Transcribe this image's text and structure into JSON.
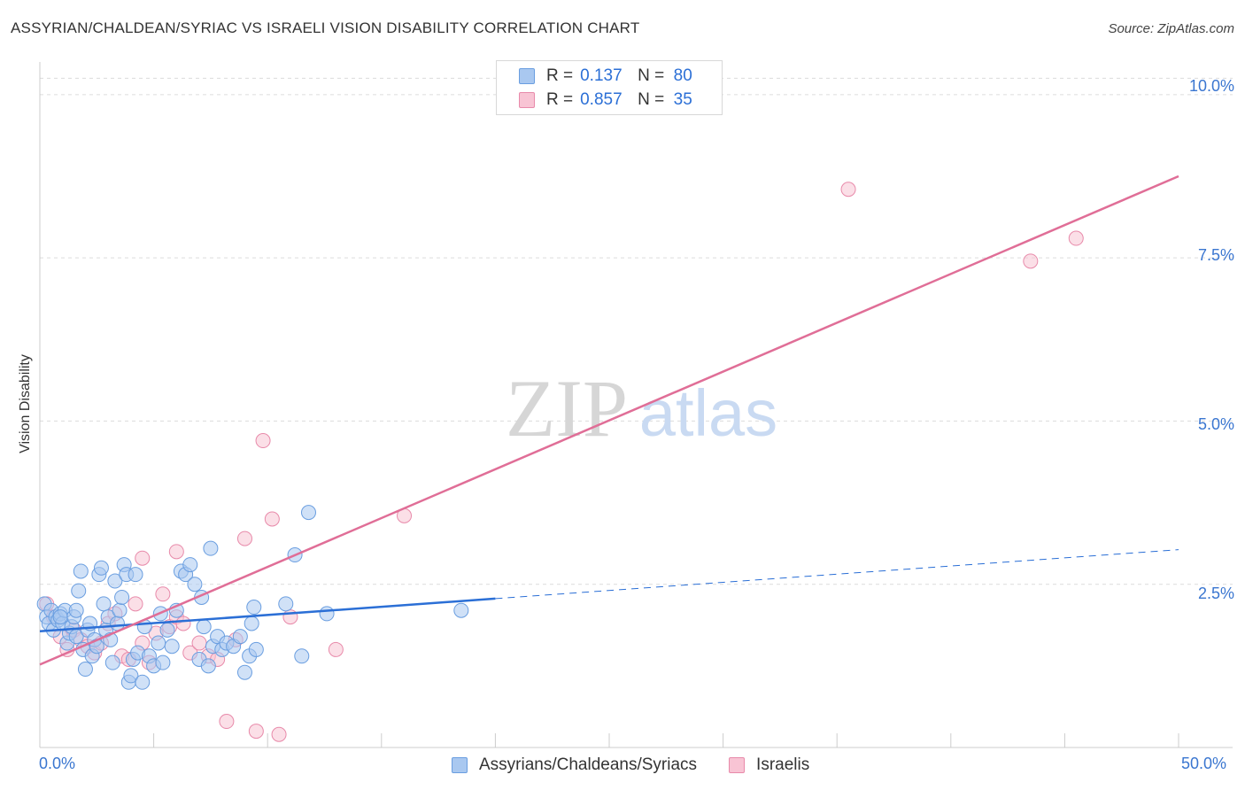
{
  "chart_data": {
    "type": "scatter",
    "title": "ASSYRIAN/CHALDEAN/SYRIAC VS ISRAELI VISION DISABILITY CORRELATION CHART",
    "source": "Source: ZipAtlas.com",
    "xlabel": "",
    "ylabel": "Vision Disability",
    "xlim": [
      0,
      50
    ],
    "ylim": [
      0,
      10.5
    ],
    "x_tick_labels": [
      "0.0%",
      "50.0%"
    ],
    "y_ticks": [
      2.5,
      5.0,
      7.5,
      10.0
    ],
    "y_tick_labels": [
      "2.5%",
      "5.0%",
      "7.5%",
      "10.0%"
    ],
    "grid": true,
    "watermark": {
      "left": "ZIP",
      "right": "atlas"
    },
    "legend_stats": [
      {
        "r_label": "R = ",
        "r_value": "0.137",
        "n_label": "N = ",
        "n_value": "80"
      },
      {
        "r_label": "R = ",
        "r_value": "0.857",
        "n_label": "N = ",
        "n_value": "35"
      }
    ],
    "series": [
      {
        "name": "Assyrians/Chaldeans/Syriacs",
        "color": "#a9c8f0",
        "stroke": "#6a9ee0",
        "line_color": "#2b6fd6",
        "trend": {
          "x0": 0,
          "y0": 1.78,
          "x1": 20,
          "y1": 2.28,
          "dash_to_x": 50,
          "dash_to_y": 3.03
        },
        "points": [
          [
            0.2,
            2.2
          ],
          [
            0.3,
            2.0
          ],
          [
            0.4,
            1.9
          ],
          [
            0.5,
            2.1
          ],
          [
            0.6,
            1.8
          ],
          [
            0.7,
            2.0
          ],
          [
            0.8,
            1.95
          ],
          [
            0.9,
            2.05
          ],
          [
            1.0,
            1.9
          ],
          [
            1.1,
            2.1
          ],
          [
            1.2,
            1.6
          ],
          [
            1.3,
            1.75
          ],
          [
            1.4,
            1.85
          ],
          [
            1.5,
            2.0
          ],
          [
            1.6,
            1.7
          ],
          [
            1.7,
            2.4
          ],
          [
            1.8,
            2.7
          ],
          [
            1.9,
            1.5
          ],
          [
            2.0,
            1.2
          ],
          [
            2.1,
            1.8
          ],
          [
            2.2,
            1.9
          ],
          [
            2.3,
            1.4
          ],
          [
            2.4,
            1.65
          ],
          [
            2.5,
            1.55
          ],
          [
            2.6,
            2.65
          ],
          [
            2.7,
            2.75
          ],
          [
            2.8,
            2.2
          ],
          [
            2.9,
            1.8
          ],
          [
            3.0,
            2.0
          ],
          [
            3.1,
            1.65
          ],
          [
            3.2,
            1.3
          ],
          [
            3.3,
            2.55
          ],
          [
            3.4,
            1.9
          ],
          [
            3.5,
            2.1
          ],
          [
            3.6,
            2.3
          ],
          [
            3.7,
            2.8
          ],
          [
            3.8,
            2.65
          ],
          [
            3.9,
            1.0
          ],
          [
            4.0,
            1.1
          ],
          [
            4.1,
            1.35
          ],
          [
            4.3,
            1.45
          ],
          [
            4.5,
            1.0
          ],
          [
            4.6,
            1.85
          ],
          [
            4.8,
            1.4
          ],
          [
            5.0,
            1.25
          ],
          [
            5.2,
            1.6
          ],
          [
            5.4,
            1.3
          ],
          [
            5.6,
            1.8
          ],
          [
            5.8,
            1.55
          ],
          [
            6.0,
            2.1
          ],
          [
            6.2,
            2.7
          ],
          [
            6.4,
            2.65
          ],
          [
            6.6,
            2.8
          ],
          [
            6.8,
            2.5
          ],
          [
            7.0,
            1.35
          ],
          [
            7.1,
            2.3
          ],
          [
            7.2,
            1.85
          ],
          [
            7.4,
            1.25
          ],
          [
            7.6,
            1.55
          ],
          [
            7.8,
            1.7
          ],
          [
            8.0,
            1.5
          ],
          [
            8.2,
            1.6
          ],
          [
            8.5,
            1.55
          ],
          [
            8.8,
            1.7
          ],
          [
            9.0,
            1.15
          ],
          [
            9.3,
            1.9
          ],
          [
            4.2,
            2.65
          ],
          [
            5.3,
            2.05
          ],
          [
            0.9,
            2.0
          ],
          [
            1.6,
            2.1
          ],
          [
            9.4,
            2.15
          ],
          [
            9.2,
            1.4
          ],
          [
            9.5,
            1.5
          ],
          [
            10.8,
            2.2
          ],
          [
            11.2,
            2.95
          ],
          [
            11.5,
            1.4
          ],
          [
            11.8,
            3.6
          ],
          [
            12.6,
            2.05
          ],
          [
            7.5,
            3.05
          ],
          [
            18.5,
            2.1
          ]
        ]
      },
      {
        "name": "Israelis",
        "color": "#f8c4d4",
        "stroke": "#e88aaa",
        "line_color": "#e06e97",
        "trend": {
          "x0": 0,
          "y0": 1.27,
          "x1": 50,
          "y1": 8.75
        },
        "points": [
          [
            0.3,
            2.2
          ],
          [
            0.6,
            2.0
          ],
          [
            0.9,
            1.7
          ],
          [
            1.2,
            1.5
          ],
          [
            1.5,
            1.8
          ],
          [
            1.8,
            1.65
          ],
          [
            2.1,
            1.55
          ],
          [
            2.4,
            1.45
          ],
          [
            2.7,
            1.6
          ],
          [
            3.0,
            1.9
          ],
          [
            3.3,
            2.05
          ],
          [
            3.6,
            1.4
          ],
          [
            3.9,
            1.35
          ],
          [
            4.2,
            2.2
          ],
          [
            4.5,
            1.6
          ],
          [
            4.8,
            1.3
          ],
          [
            5.1,
            1.75
          ],
          [
            5.4,
            2.35
          ],
          [
            5.7,
            1.85
          ],
          [
            6.0,
            2.0
          ],
          [
            6.3,
            1.9
          ],
          [
            6.6,
            1.45
          ],
          [
            7.0,
            1.6
          ],
          [
            7.4,
            1.4
          ],
          [
            7.8,
            1.35
          ],
          [
            8.2,
            0.4
          ],
          [
            8.6,
            1.65
          ],
          [
            9.0,
            3.2
          ],
          [
            9.5,
            0.25
          ],
          [
            9.8,
            4.7
          ],
          [
            10.2,
            3.5
          ],
          [
            10.5,
            0.2
          ],
          [
            11.0,
            2.0
          ],
          [
            16.0,
            3.55
          ],
          [
            35.5,
            8.55
          ]
        ]
      }
    ],
    "extra_israeli_points": [
      [
        43.5,
        7.45
      ],
      [
        45.5,
        7.8
      ],
      [
        6.0,
        3.0
      ],
      [
        4.5,
        2.9
      ],
      [
        13.0,
        1.5
      ]
    ]
  }
}
